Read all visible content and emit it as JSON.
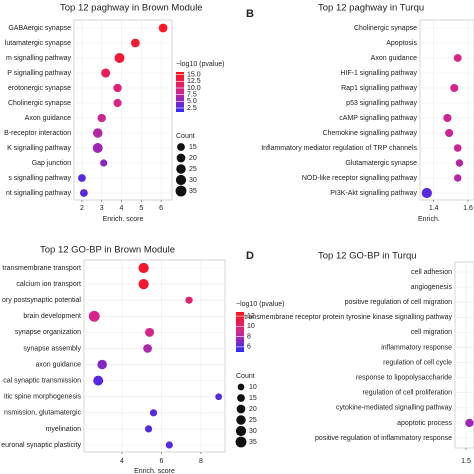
{
  "chart_data": [
    {
      "type": "dot",
      "title": "Top 12 paghway in Brown Module",
      "categories": [
        "GABAergic synapse",
        "lutamatergic synapse",
        "m signalling pathway",
        "P signalling pathway",
        "erotonergic synapse",
        "Cholinergic synapse",
        "Axon guidance",
        "B-receptor interaction",
        "K signalling pathway",
        "Gap junction",
        "s signalling pathway",
        "nt signalling pathway"
      ],
      "x": [
        6.1,
        4.7,
        3.9,
        3.2,
        3.8,
        3.8,
        3.0,
        2.8,
        2.8,
        3.1,
        2.0,
        2.1
      ],
      "neg_log10_p": [
        15,
        14,
        14,
        12,
        10,
        9,
        8,
        7,
        6,
        5,
        3,
        3
      ],
      "count": [
        20,
        20,
        28,
        22,
        18,
        17,
        18,
        25,
        28,
        12,
        15,
        15
      ],
      "xlim": [
        1.6,
        6.55
      ],
      "xticks": [
        2,
        3,
        4,
        5,
        6
      ],
      "xlabel": "Enrich. score",
      "colors": [
        "#2a2aff",
        "#d6258f",
        "#ff1414"
      ],
      "colorbar": {
        "title": "−log10 (pvalue)",
        "lim": [
          1,
          16
        ],
        "ticks": [
          {
            "value": 15,
            "label": "15.0"
          },
          12.5,
          {
            "value": 10,
            "label": "10.0"
          },
          7.5,
          {
            "value": 5,
            "label": "5.0"
          },
          2.5
        ]
      },
      "size_legend": {
        "title": "Count",
        "ticks": [
          15,
          20,
          25,
          30,
          35
        ]
      }
    },
    {
      "type": "dot",
      "panel_label": "B",
      "title": "Top 12 paghway in Turqu",
      "categories": [
        "Cholinergic synapse",
        "Apoptosis",
        "Axon guidance",
        "HIF-1 signalling pathway",
        "Rap1 signalling pathway",
        "p53 signalling pathway",
        "cAMP signalling pathway",
        "Chemokine signalling pathway",
        "Inflammatory mediator regulation of TRP channels",
        "Glutamatergic synapse",
        "NOD-like receptor signalling pathway",
        "PI3K-Akt signalling pathway"
      ],
      "x": [
        null,
        null,
        1.54,
        null,
        1.52,
        null,
        1.48,
        1.49,
        1.54,
        1.55,
        1.54,
        1.36
      ],
      "neg_log10_p": [
        null,
        null,
        9,
        null,
        9,
        null,
        8,
        8,
        8,
        7,
        7,
        3
      ],
      "count": [
        null,
        null,
        15,
        null,
        16,
        null,
        17,
        16,
        14,
        13,
        13,
        30
      ],
      "xlim": [
        1.32,
        1.635
      ],
      "xticks": [
        1.4,
        1.6
      ],
      "xlabel": "Enrich.",
      "colors": [
        "#2a2aff",
        "#d6258f",
        "#ff1414"
      ],
      "clim": [
        1,
        16
      ]
    },
    {
      "type": "dot",
      "title": "Top 12 GO-BP in Brown Module",
      "categories": [
        "transmembrane transport",
        "calcium ion transport",
        "ory postsynaptic potential",
        "brain development",
        "synapse organization",
        "synapse assembly",
        "axon guidance",
        "cal synaptic transmission",
        "itic spine morphogenesis",
        "nsmission, glutamatergic",
        "myelination",
        "euronal synaptic plasticity"
      ],
      "x": [
        5.1,
        5.1,
        7.4,
        2.6,
        5.4,
        5.3,
        3.0,
        2.8,
        8.9,
        5.6,
        5.35,
        6.4
      ],
      "neg_log10_p": [
        12,
        12,
        10,
        9,
        9,
        8,
        7,
        6,
        6,
        6,
        6,
        6
      ],
      "count": [
        30,
        30,
        12,
        35,
        22,
        20,
        25,
        28,
        10,
        12,
        12,
        12
      ],
      "xlim": [
        2.08,
        9.22
      ],
      "xticks": [
        4,
        6,
        8
      ],
      "xlabel": "Enrich. score",
      "colors": [
        "#2a2aff",
        "#d6258f",
        "#ff1414"
      ],
      "colorbar": {
        "title": "−log10 (pvalue)",
        "lim": [
          5,
          12.8
        ],
        "ticks": [
          12,
          10,
          8,
          6
        ]
      },
      "size_legend": {
        "title": "Count",
        "ticks": [
          10,
          15,
          20,
          25,
          30,
          35
        ]
      }
    },
    {
      "type": "dot",
      "panel_label": "D",
      "title": "Top 12 GO-BP in Turqu",
      "categories": [
        "cell adhesion",
        "angiogenesis",
        "positive regulation of cell migration",
        "transmembrane receptor protein tyrosine kinase signalling pathway",
        "cell migration",
        "inflammatory response",
        "regulation of cell cycle",
        "response to lipopolysaccharide",
        "regulation of cell proliferation",
        "cytokine-mediated signalling pathway",
        "apoptotic process",
        "positive regulation of inflammatory response"
      ],
      "x": [
        null,
        null,
        null,
        null,
        null,
        null,
        null,
        null,
        null,
        null,
        1.52,
        null
      ],
      "neg_log10_p": [
        null,
        null,
        null,
        null,
        null,
        null,
        null,
        null,
        null,
        null,
        6,
        null
      ],
      "count": [
        null,
        null,
        null,
        null,
        null,
        null,
        null,
        null,
        null,
        null,
        18,
        null
      ],
      "xlim": [
        1.435,
        1.547
      ],
      "xticks": [
        1.5
      ],
      "colors": [
        "#2a2aff",
        "#d6258f",
        "#ff1414"
      ],
      "clim": [
        1,
        16
      ]
    }
  ]
}
